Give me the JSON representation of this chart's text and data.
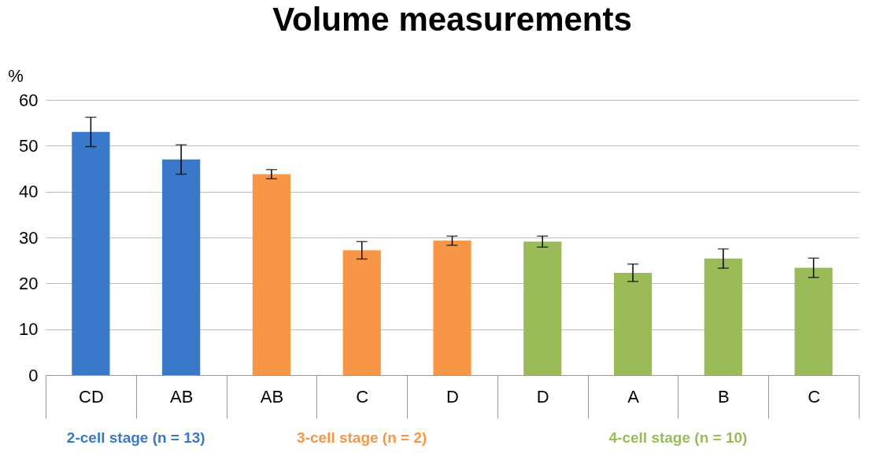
{
  "chart_data": {
    "type": "bar",
    "title": "Volume measurements",
    "ylabel": "%",
    "categories": [
      "CD",
      "AB",
      "AB",
      "C",
      "D",
      "D",
      "A",
      "B",
      "C"
    ],
    "series": [
      {
        "name": "2-cell stage (n = 13)",
        "color": "#3a78c9",
        "values": [
          53,
          47,
          null,
          null,
          null,
          null,
          null,
          null,
          null
        ],
        "errors": [
          3.2,
          3.2,
          null,
          null,
          null,
          null,
          null,
          null,
          null
        ]
      },
      {
        "name": "3-cell stage (n = 2)",
        "color": "#f79646",
        "values": [
          null,
          null,
          43.8,
          27.2,
          29.3,
          null,
          null,
          null,
          null
        ],
        "errors": [
          null,
          null,
          1,
          1.9,
          1,
          null,
          null,
          null,
          null
        ]
      },
      {
        "name": "4-cell stage (n = 10)",
        "color": "#9bbb59",
        "values": [
          null,
          null,
          null,
          null,
          null,
          29.1,
          22.3,
          25.4,
          23.4
        ],
        "errors": [
          null,
          null,
          null,
          null,
          null,
          1.2,
          1.9,
          2.1,
          2.1
        ]
      }
    ],
    "ylim": [
      0,
      60
    ],
    "yticks": [
      0,
      10,
      20,
      30,
      40,
      50,
      60
    ],
    "grid": "y",
    "legend": false
  }
}
